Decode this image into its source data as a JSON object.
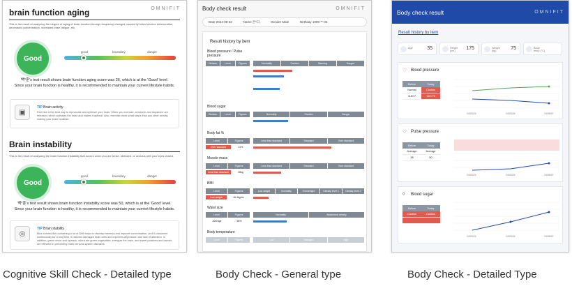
{
  "brand": "OMNIFIT",
  "colors": {
    "good": "#3cb45a",
    "accent_blue": "#1f4aa8",
    "warn_red": "#e05b4d",
    "bar_blue": "#3d7ec7"
  },
  "captions": [
    "Cognitive Skill Check - Detailed type",
    "Body Check - General type",
    "Body Check - Detailed Type"
  ],
  "cognitive": {
    "section1": {
      "title": "brain function aging",
      "desc": "This is the result of analyzing the degree of aging of brain function through frequency changes caused by brain function deterioration, decreased concentration, increased brain fatigue, etc.",
      "badge": "Good",
      "gauge_labels": [
        "good",
        "boundary",
        "danger"
      ],
      "result_line1": "백*훈's test result shows brain function aging score was 26, which is at the 'Good' level.",
      "result_line2": "Since your brain function is healthy, it is recommended to maintain your current lifestyle habits.",
      "tip_tag": "TIP",
      "tip_title": "Brain activity",
      "tip_body": "Exercise is the best way to rejuvenate and optimize your brain. When you exercise, serotonin and dopamine are released, which activates the brain and makes it optimal. Also, exercise more small steps than any other activity, making your brain healthier."
    },
    "section2": {
      "title": "Brain instability",
      "desc": "This is the result of analyzing the brain function instability that occurs when you are tense, stressed, or anxious with your eyes closed.",
      "badge": "Good",
      "gauge_labels": [
        "good",
        "boundary",
        "danger"
      ],
      "result_line1": "백*훈's test result shows brain function instability score was 50, which is at the 'Good' level.",
      "result_line2": "Since your brain function is healthy, it is recommended to maintain your current lifestyle habits.",
      "tip_tag": "TIP",
      "tip_title": "Brain stability",
      "tip_body": "Blue-colored fish containing a lot of DHA helps to develop memory and improve concentration, and if consumed continuously for a long time, it restores damaged brain cells and improves depression and lack of attention. In addition, green onion and spinach, which are green vegetables, energize the brain, and sweet potatoes and carrots are effective in preventing brain nervous system diseases."
    }
  },
  "general": {
    "title": "Body check result",
    "info": [
      "Date  2024-08-22",
      "Name  은*디",
      "Gender  Male",
      "Birthday  1999-**-06"
    ],
    "history_title": "Result history by item",
    "sections": [
      {
        "label": "Blood pressure / Pulse pressure",
        "cols": [
          "Division",
          "Level",
          "Figures"
        ],
        "scale": [
          "Normality",
          "Caution",
          "Warning",
          "Danger"
        ]
      },
      {
        "label": "Blood sugar",
        "cols": [
          "Division",
          "Level",
          "Figures"
        ],
        "scale": [
          "Normality",
          "Caution",
          "Danger"
        ]
      },
      {
        "label": "Body fat %",
        "cols": [
          "Level",
          "Figures"
        ],
        "scale": [
          "Less than standard",
          "Standard",
          "Over standard"
        ],
        "value_label": "Over standard",
        "value": "21%"
      },
      {
        "label": "Muscle mass",
        "cols": [
          "Level",
          "Figures"
        ],
        "scale": [
          "Less than standard",
          "Standard",
          "Over standard"
        ],
        "value_label": "Less than standard",
        "value": "28kg"
      },
      {
        "label": "BMI",
        "cols": [
          "Level",
          "Figures"
        ],
        "scale": [
          "Low weight",
          "Normality",
          "Overweight",
          "Obesity level 1",
          "Obesity level 2"
        ],
        "value_label": "Low weight",
        "value": "16.4kg/m²"
      },
      {
        "label": "Waist size",
        "cols": [
          "Level",
          "Figures"
        ],
        "scale": [
          "Normality",
          "Abdominal obesity"
        ],
        "value_label": "Average",
        "value": "65%"
      },
      {
        "label": "Body temperature",
        "cols": [
          "Level",
          "Figures"
        ],
        "scale": [
          "Low",
          "Standard",
          "High"
        ]
      }
    ]
  },
  "detailed": {
    "title": "Body check result",
    "history_title": "Result history by item",
    "stats": [
      {
        "label": "Age",
        "value": "35"
      },
      {
        "label": "Height (cm)",
        "value": "175"
      },
      {
        "label": "Weight (kg)",
        "value": "75"
      },
      {
        "label": "Body temp (°C)",
        "value": ""
      }
    ],
    "panels": [
      {
        "title": "Blood pressure",
        "cols": [
          "Before",
          "Today"
        ],
        "rows": [
          [
            "Normal",
            "Caution"
          ],
          [
            "115/77",
            "115+79"
          ]
        ],
        "x_labels": [
          "24/03/23",
          "24/03/24",
          "24/08/07"
        ],
        "y_ticks": [
          "160",
          "140",
          "120",
          "100",
          "80",
          "60"
        ]
      },
      {
        "title": "Pulse pressure",
        "cols": [
          "Before",
          "Today"
        ],
        "rows": [
          [
            "Average",
            "Average"
          ],
          [
            "38",
            "50"
          ]
        ],
        "x_labels": [
          "24/03/23",
          "24/03/24",
          "24/08/07"
        ],
        "y_ticks": [
          "160",
          "140",
          "120",
          "100",
          "80",
          "60"
        ]
      },
      {
        "title": "Blood sugar",
        "cols": [
          "Before",
          "Today"
        ],
        "rows": [
          [
            "Caution",
            "Caution"
          ],
          [
            "",
            ""
          ]
        ],
        "x_labels": [
          "24/03/23",
          "24/03/24",
          "24/08/07"
        ],
        "y_ticks": [
          "160",
          "140",
          "120",
          "100",
          "80",
          "60"
        ]
      }
    ]
  }
}
